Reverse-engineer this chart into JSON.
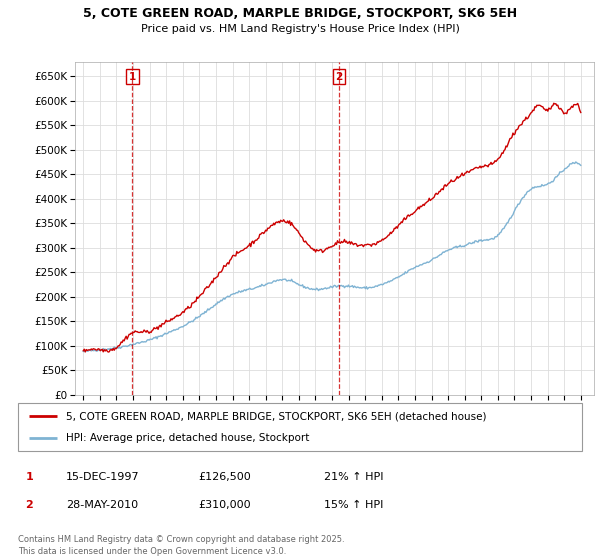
{
  "title1": "5, COTE GREEN ROAD, MARPLE BRIDGE, STOCKPORT, SK6 5EH",
  "title2": "Price paid vs. HM Land Registry's House Price Index (HPI)",
  "ylim": [
    0,
    680000
  ],
  "yticks": [
    0,
    50000,
    100000,
    150000,
    200000,
    250000,
    300000,
    350000,
    400000,
    450000,
    500000,
    550000,
    600000,
    650000
  ],
  "ytick_labels": [
    "£0",
    "£50K",
    "£100K",
    "£150K",
    "£200K",
    "£250K",
    "£300K",
    "£350K",
    "£400K",
    "£450K",
    "£500K",
    "£550K",
    "£600K",
    "£650K"
  ],
  "line1_color": "#cc0000",
  "line2_color": "#7fb3d3",
  "purchase1_date": 1997.96,
  "purchase1_price": 126500,
  "purchase2_date": 2010.41,
  "purchase2_price": 310000,
  "legend1_text": "5, COTE GREEN ROAD, MARPLE BRIDGE, STOCKPORT, SK6 5EH (detached house)",
  "legend2_text": "HPI: Average price, detached house, Stockport",
  "date1": "15-DEC-1997",
  "price1": "£126,500",
  "hpi1": "21% ↑ HPI",
  "date2": "28-MAY-2010",
  "price2": "£310,000",
  "hpi2": "15% ↑ HPI",
  "copyright_text": "Contains HM Land Registry data © Crown copyright and database right 2025.\nThis data is licensed under the Open Government Licence v3.0.",
  "background_color": "#ffffff",
  "grid_color": "#dddddd",
  "xmin": 1994.5,
  "xmax": 2025.8
}
